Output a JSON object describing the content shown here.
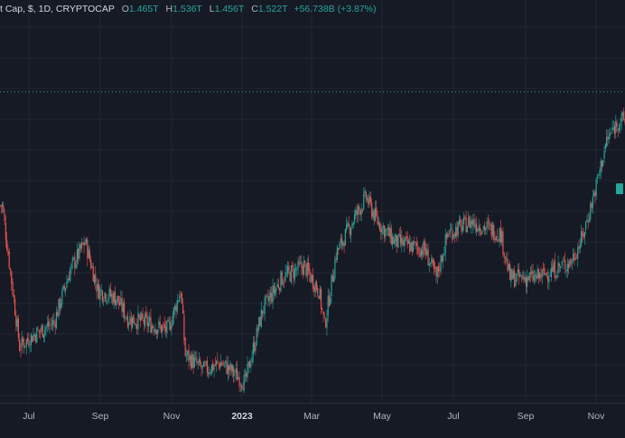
{
  "legend": {
    "title": "t Cap, $, 1D, CRYPTOCAP",
    "open_label": "O",
    "open_value": "1.465T",
    "high_label": "H",
    "high_value": "1.536T",
    "low_label": "L",
    "low_value": "1.456T",
    "close_label": "C",
    "close_value": "1.522T",
    "change": "+56.738B (+3.87%)"
  },
  "colors": {
    "background": "#161a25",
    "grid": "#232735",
    "up": "#26a69a",
    "down": "#ef5350",
    "last_price_line": "#26a69a"
  },
  "chart_data": {
    "type": "candlestick",
    "interval": "1D",
    "symbol": "CRYPTOCAP",
    "x_ticks": [
      "Jul",
      "Sep",
      "Nov",
      "2023",
      "Mar",
      "May",
      "Jul",
      "Sep",
      "Nov"
    ],
    "ylim": [
      0.75,
      1.75
    ],
    "last_price": 1.522,
    "grid": true,
    "series": [
      {
        "date": "2022-06-03",
        "value": 1.24
      },
      {
        "date": "2022-06-18",
        "value": 0.89
      },
      {
        "date": "2022-07-01",
        "value": 0.92
      },
      {
        "date": "2022-07-18",
        "value": 0.95
      },
      {
        "date": "2022-08-01",
        "value": 1.08
      },
      {
        "date": "2022-08-14",
        "value": 1.15
      },
      {
        "date": "2022-08-25",
        "value": 1.03
      },
      {
        "date": "2022-09-10",
        "value": 1.01
      },
      {
        "date": "2022-09-20",
        "value": 0.96
      },
      {
        "date": "2022-10-05",
        "value": 0.95
      },
      {
        "date": "2022-10-25",
        "value": 0.93
      },
      {
        "date": "2022-11-05",
        "value": 1.03
      },
      {
        "date": "2022-11-09",
        "value": 0.87
      },
      {
        "date": "2022-11-25",
        "value": 0.83
      },
      {
        "date": "2022-12-10",
        "value": 0.85
      },
      {
        "date": "2022-12-31",
        "value": 0.8
      },
      {
        "date": "2023-01-15",
        "value": 0.98
      },
      {
        "date": "2023-02-01",
        "value": 1.06
      },
      {
        "date": "2023-02-20",
        "value": 1.09
      },
      {
        "date": "2023-03-05",
        "value": 1.03
      },
      {
        "date": "2023-03-10",
        "value": 0.94
      },
      {
        "date": "2023-03-20",
        "value": 1.12
      },
      {
        "date": "2023-04-05",
        "value": 1.21
      },
      {
        "date": "2023-04-15",
        "value": 1.26
      },
      {
        "date": "2023-04-25",
        "value": 1.2
      },
      {
        "date": "2023-05-10",
        "value": 1.15
      },
      {
        "date": "2023-06-05",
        "value": 1.13
      },
      {
        "date": "2023-06-15",
        "value": 1.06
      },
      {
        "date": "2023-06-25",
        "value": 1.17
      },
      {
        "date": "2023-07-15",
        "value": 1.2
      },
      {
        "date": "2023-08-10",
        "value": 1.17
      },
      {
        "date": "2023-08-18",
        "value": 1.06
      },
      {
        "date": "2023-09-10",
        "value": 1.06
      },
      {
        "date": "2023-09-25",
        "value": 1.08
      },
      {
        "date": "2023-10-10",
        "value": 1.1
      },
      {
        "date": "2023-10-20",
        "value": 1.16
      },
      {
        "date": "2023-11-01",
        "value": 1.29
      },
      {
        "date": "2023-11-10",
        "value": 1.4
      },
      {
        "date": "2023-11-20",
        "value": 1.45
      }
    ]
  }
}
